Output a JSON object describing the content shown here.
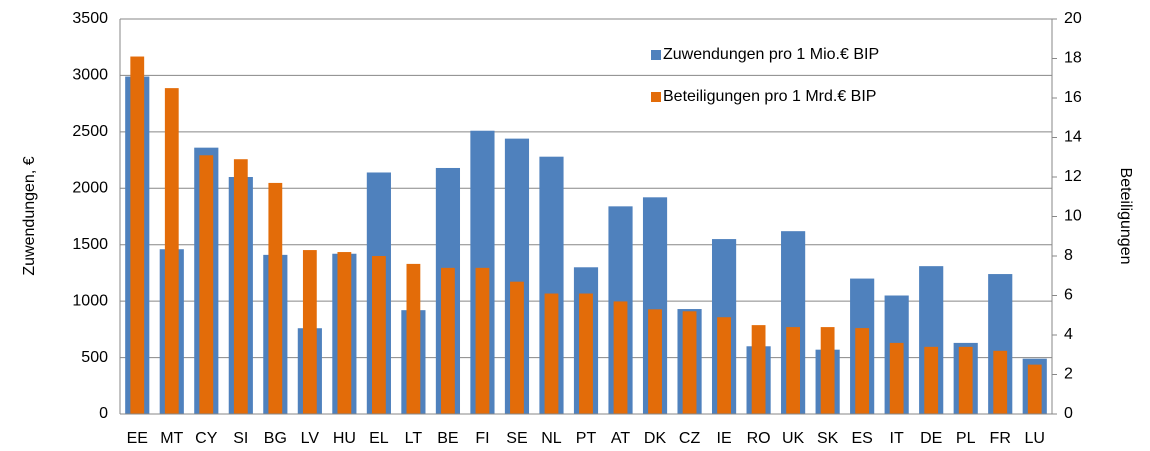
{
  "chart_data": {
    "type": "bar",
    "categories": [
      "EE",
      "MT",
      "CY",
      "SI",
      "BG",
      "LV",
      "HU",
      "EL",
      "LT",
      "BE",
      "FI",
      "SE",
      "NL",
      "PT",
      "AT",
      "DK",
      "CZ",
      "IE",
      "RO",
      "UK",
      "SK",
      "ES",
      "IT",
      "DE",
      "PL",
      "FR",
      "LU"
    ],
    "series": [
      {
        "name": "Zuwendungen pro 1 Mio.€ BIP",
        "color": "#4f81bd",
        "values": [
          2990,
          1460,
          2360,
          2100,
          1410,
          760,
          1420,
          2140,
          920,
          2180,
          2510,
          2440,
          2280,
          1300,
          1840,
          1920,
          930,
          1550,
          600,
          1620,
          570,
          1200,
          1050,
          1310,
          630,
          1240,
          490
        ]
      },
      {
        "name": "Beteiligungen pro 1 Mrd.€ BIP",
        "color": "#e36c09",
        "axis": "y2",
        "values": [
          18.1,
          16.5,
          13.1,
          12.9,
          11.7,
          8.3,
          8.2,
          8.0,
          7.6,
          7.4,
          7.4,
          6.7,
          6.1,
          6.1,
          5.7,
          5.3,
          5.2,
          4.9,
          4.5,
          4.4,
          4.4,
          4.35,
          3.6,
          3.4,
          3.4,
          3.2,
          2.5
        ]
      }
    ],
    "ylabel": "Zuwendungen, €",
    "y2label": "Beteiligungen",
    "ylim": [
      0,
      3500
    ],
    "yticks": [
      0,
      500,
      1000,
      1500,
      2000,
      2500,
      3000,
      3500
    ],
    "y2lim": [
      0,
      20
    ],
    "y2ticks": [
      0,
      2,
      4,
      6,
      8,
      10,
      12,
      14,
      16,
      18,
      20
    ],
    "grid": true,
    "legend": "top-right"
  }
}
